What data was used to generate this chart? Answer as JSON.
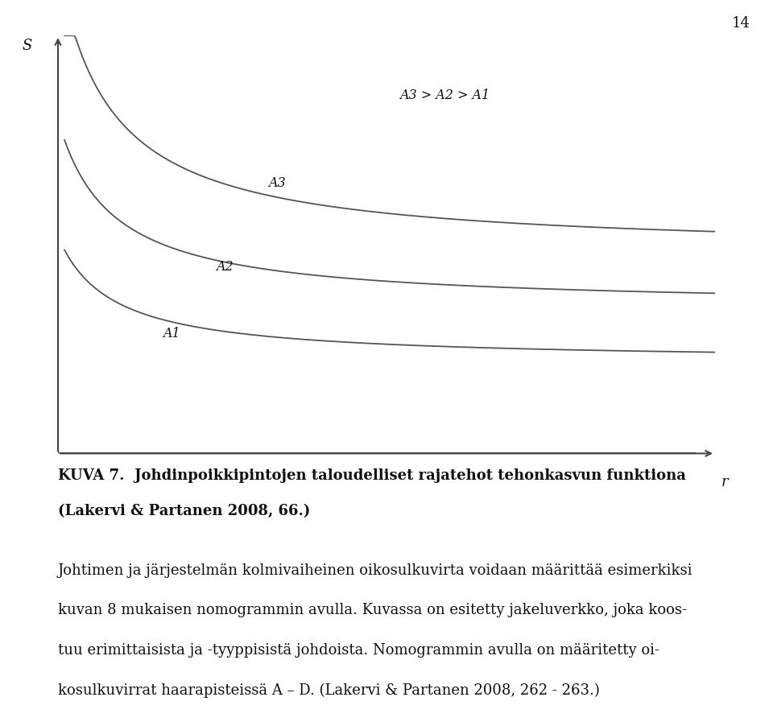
{
  "page_number": "14",
  "background_color": "#ffffff",
  "curve_color": "#555555",
  "axis_color": "#444444",
  "text_color": "#111111",
  "label_A3_A2_A1": "A3 > A2 > A1",
  "label_A3": "A3",
  "label_A2": "A2",
  "label_A1": "A1",
  "xlabel": "r",
  "ylabel": "S",
  "caption_bold": "KUVA 7.  Johdinpoikkipintojen taloudelliset rajatehot tehonkasvun funktiona",
  "caption_bold2": "(Lakervi & Partanen 2008, 66.)",
  "body_text_line1": "Johtimen ja järjestelmän kolmivaiheinen oikosulkuvirta voidaan määrittää esimerkiksi",
  "body_text_line2": "kuvan 8 mukaisen nomogrammin avulla. Kuvassa on esitetty jakeluverkko, joka koos-",
  "body_text_line3": "tuu erimittaisista ja -tyyppisistä johdoista. Nomogrammin avulla on määritetty oi-",
  "body_text_line4": "kosulkuvirrat haarapisteissä A – D. (Lakervi & Partanen 2008, 262 - 263.)"
}
